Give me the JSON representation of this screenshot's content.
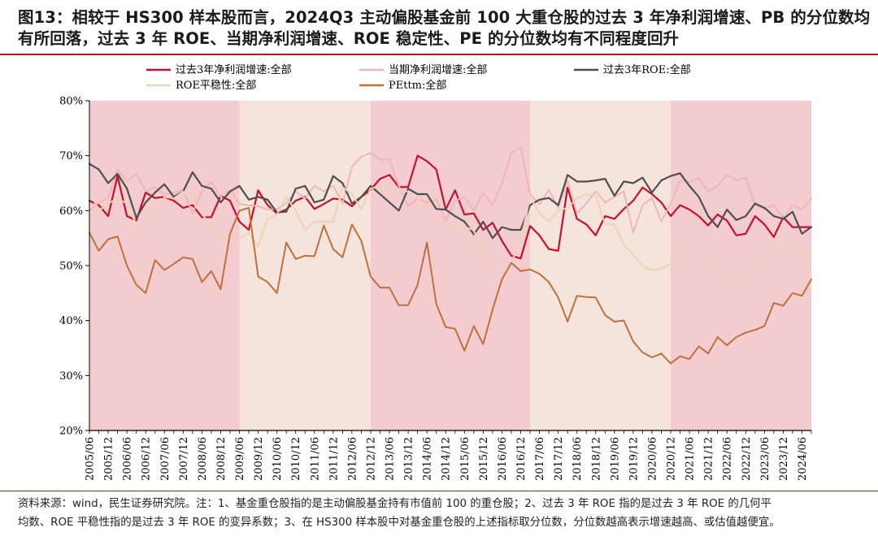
{
  "header": {
    "title_line1": "图13：相较于 HS300 样本股而言，2024Q3 主动偏股基金前 100 大重仓股的过去 3 年净利润增速、PB 的分位数均",
    "title_line2": "有所回落，过去 3 年 ROE、当期净利润增速、ROE 稳定性、PE 的分位数均有不同程度回升"
  },
  "footer": {
    "source_line1": "资料来源：wind，民生证券研究院。注：1、基金重仓股指的是主动偏股基金持有市值前 100 的重仓股；2、过去 3 年 ROE 指的是过去 3 年 ROE 的几何平",
    "source_line2": "均数、ROE 平稳性指的是过去 3 年 ROE 的变异系数；3、在 HS300 样本股中对基金重仓股的上述指标取分位数，分位数越高表示增速越高、或估值越便宜。"
  },
  "chart_data": {
    "type": "line",
    "x": [
      "2005/06",
      "2005/09",
      "2005/12",
      "2006/03",
      "2006/06",
      "2006/09",
      "2006/12",
      "2007/03",
      "2007/06",
      "2007/09",
      "2007/12",
      "2008/03",
      "2008/06",
      "2008/09",
      "2008/12",
      "2009/03",
      "2009/06",
      "2009/09",
      "2009/12",
      "2010/03",
      "2010/06",
      "2010/09",
      "2010/12",
      "2011/03",
      "2011/06",
      "2011/09",
      "2011/12",
      "2012/03",
      "2012/06",
      "2012/09",
      "2012/12",
      "2013/03",
      "2013/06",
      "2013/09",
      "2013/12",
      "2014/03",
      "2014/06",
      "2014/09",
      "2014/12",
      "2015/03",
      "2015/06",
      "2015/09",
      "2015/12",
      "2016/03",
      "2016/06",
      "2016/09",
      "2016/12",
      "2017/03",
      "2017/06",
      "2017/09",
      "2017/12",
      "2018/03",
      "2018/06",
      "2018/09",
      "2018/12",
      "2019/03",
      "2019/06",
      "2019/09",
      "2019/12",
      "2020/03",
      "2020/06",
      "2020/09",
      "2020/12",
      "2021/03",
      "2021/06",
      "2021/09",
      "2021/12",
      "2022/03",
      "2022/06",
      "2022/09",
      "2022/12",
      "2023/03",
      "2023/06",
      "2023/09",
      "2023/12",
      "2024/03",
      "2024/06",
      "2024/09"
    ],
    "x_tick_labels": [
      "2005/06",
      "2005/12",
      "2006/06",
      "2006/12",
      "2007/06",
      "2007/12",
      "2008/06",
      "2008/12",
      "2009/06",
      "2009/12",
      "2010/06",
      "2010/12",
      "2011/06",
      "2011/12",
      "2012/06",
      "2012/12",
      "2013/06",
      "2013/12",
      "2014/06",
      "2014/12",
      "2015/06",
      "2015/12",
      "2016/06",
      "2016/12",
      "2017/06",
      "2017/12",
      "2018/06",
      "2018/12",
      "2019/06",
      "2019/12",
      "2020/06",
      "2020/12",
      "2021/06",
      "2021/12",
      "2022/06",
      "2022/12",
      "2023/06",
      "2023/12",
      "2024/06"
    ],
    "y_ticks": [
      "20%",
      "30%",
      "40%",
      "50%",
      "60%",
      "70%",
      "80%"
    ],
    "ylim": [
      20,
      80
    ],
    "shaded_periods": [
      {
        "from": "2005/06",
        "to": "2009/06",
        "color": "#f2cccf"
      },
      {
        "from": "2009/06",
        "to": "2012/12",
        "color": "#f4e4dc"
      },
      {
        "from": "2012/12",
        "to": "2017/03",
        "color": "#f2cccf"
      },
      {
        "from": "2017/03",
        "to": "2020/12",
        "color": "#f4e4dc"
      },
      {
        "from": "2020/12",
        "to": "2024/09",
        "color": "#f2cccf"
      }
    ],
    "legend_position": "top",
    "series": [
      {
        "name": "过去3年净利润增速:全部",
        "color": "#c8102e",
        "width": 2.2,
        "values": [
          61.8,
          61,
          59,
          66.3,
          59,
          58.2,
          63.3,
          62.3,
          62.5,
          61.8,
          60.5,
          61,
          58.8,
          58.8,
          62.7,
          61.8,
          58,
          56.5,
          63.7,
          61,
          59.5,
          60.2,
          61.8,
          62.5,
          60.3,
          61.2,
          62.2,
          62,
          60.8,
          62.5,
          63.8,
          65.8,
          66.5,
          64.3,
          64.3,
          70,
          69,
          67.5,
          60.2,
          63.7,
          59.3,
          59.5,
          56.5,
          57.8,
          54.5,
          51.8,
          51.3,
          57.2,
          55.5,
          53,
          52.7,
          64.2,
          58.5,
          57.5,
          55.5,
          59,
          58.5,
          60.3,
          61.8,
          64.2,
          63,
          61.5,
          59,
          61,
          60.2,
          59,
          57.3,
          59.3,
          58.2,
          55.5,
          55.8,
          59,
          57.5,
          55.2,
          58.8,
          57,
          57,
          57
        ]
      },
      {
        "name": "当期净利润增速:全部",
        "color": "#eeb6b8",
        "width": 2,
        "values": [
          60,
          61.5,
          62.3,
          67.5,
          65.3,
          66.7,
          63.5,
          64.3,
          63,
          63.2,
          63.8,
          59.5,
          63.5,
          65.2,
          62.5,
          63.8,
          61.2,
          61,
          60.8,
          60.2,
          60.3,
          61.3,
          63.5,
          62.2,
          64.5,
          63.5,
          64.5,
          61.3,
          68,
          69.8,
          70.5,
          69.3,
          69.3,
          64.5,
          60.8,
          62.2,
          61.5,
          62,
          58.2,
          61.8,
          62.5,
          60,
          63.3,
          61,
          65,
          70.5,
          71.5,
          63,
          61.2,
          63.8,
          60.5,
          65.5,
          59.5,
          61.3,
          63.5,
          61.5,
          62.5,
          63.5,
          56,
          61,
          62.3,
          58,
          61.3,
          65.5,
          65.2,
          66,
          63.5,
          64.5,
          66.5,
          65.5,
          66,
          61,
          60.3,
          61,
          58.5,
          61,
          60.2,
          62.2
        ]
      },
      {
        "name": "过去3年ROE:全部",
        "color": "#4f4f4f",
        "width": 2.2,
        "values": [
          68.5,
          67.5,
          65,
          66.7,
          64,
          58.7,
          61.5,
          63.3,
          64.8,
          62.5,
          63.5,
          67,
          64.5,
          64,
          61.5,
          63.5,
          64.5,
          62,
          62.5,
          62,
          59.7,
          59.8,
          64,
          64.5,
          61.5,
          62,
          66.3,
          65,
          61.3,
          62.5,
          64.5,
          63,
          61.5,
          60,
          64,
          63,
          63,
          60.3,
          60.2,
          59,
          58,
          55.7,
          58,
          55,
          57,
          56.5,
          56.5,
          61,
          62,
          62.3,
          61,
          66.5,
          65.3,
          65.3,
          65.5,
          65.8,
          62.7,
          65.3,
          65,
          66,
          63.3,
          65.5,
          66.3,
          66.8,
          64.5,
          62.5,
          59,
          57,
          60.2,
          58.3,
          59,
          61.3,
          60.5,
          59,
          58.5,
          59.8,
          55.8,
          57
        ]
      },
      {
        "name": "ROE平稳性:全部",
        "color": "#f0d2b4",
        "width": 2,
        "values": [
          63.5,
          60,
          61.3,
          62.2,
          61.3,
          57.5,
          57,
          58.5,
          62.5,
          62.2,
          63.5,
          61.5,
          59.5,
          57,
          55.5,
          55.5,
          55,
          56,
          53.5,
          58.5,
          59.3,
          62.5,
          60,
          56.5,
          58,
          58,
          58,
          64.3,
          63,
          60.3,
          64,
          64.5,
          62.8,
          63.5,
          63.5,
          62.2,
          60.5,
          58,
          57.8,
          57.3,
          57,
          56.5,
          51.5,
          48.5,
          47,
          50.5,
          54.5,
          62.5,
          59.5,
          58,
          60,
          60.5,
          62.2,
          63,
          62.7,
          57.5,
          57.5,
          53.8,
          52,
          50,
          49.2,
          49.5,
          50.3,
          54.5,
          52.5,
          51.5,
          50.5,
          49,
          47,
          45.2,
          48,
          50.5,
          52,
          54,
          54,
          53,
          51.5,
          52.3
        ]
      },
      {
        "name": "PEttm:全部",
        "color": "#c0703a",
        "width": 2,
        "values": [
          56,
          52.7,
          54.8,
          55.3,
          50,
          46.5,
          45,
          51,
          49.2,
          50.3,
          51.5,
          51.2,
          47,
          49,
          45.7,
          55.8,
          60,
          60.5,
          48,
          47,
          45,
          54.2,
          51.2,
          51.8,
          51.7,
          57.3,
          53,
          51.5,
          57.5,
          54.5,
          48,
          46,
          46,
          42.8,
          42.8,
          46.5,
          54.2,
          43,
          38.8,
          38.5,
          34.5,
          39,
          35.7,
          42,
          47.5,
          50.5,
          49,
          49.3,
          48.5,
          47,
          44.2,
          39.8,
          44.5,
          44.3,
          44.2,
          41,
          39.8,
          40,
          36.2,
          34.2,
          33.3,
          34,
          32.2,
          33.5,
          33,
          35.3,
          34,
          37,
          35.5,
          37,
          37.8,
          38.3,
          39,
          43.2,
          42.7,
          45,
          44.5,
          47.5
        ]
      }
    ]
  }
}
